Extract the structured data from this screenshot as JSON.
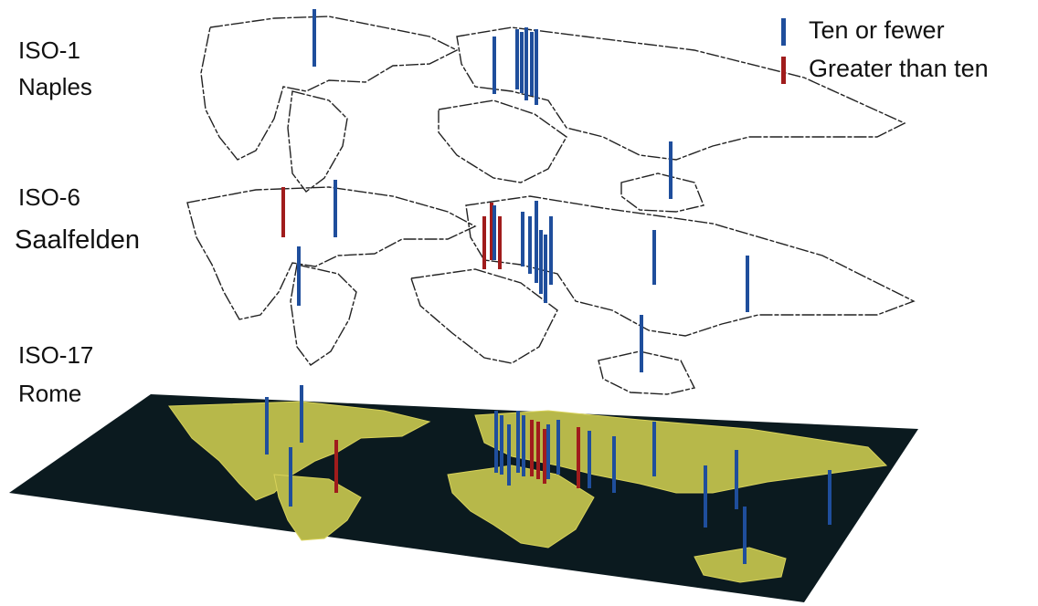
{
  "layers": [
    {
      "code": "ISO-1",
      "city": "Naples"
    },
    {
      "code": "ISO-6",
      "city": "Saalfelden"
    },
    {
      "code": "ISO-17",
      "city": "Rome"
    }
  ],
  "legend": [
    {
      "label": "Ten or fewer",
      "color": "#1f4e9c"
    },
    {
      "label": "Greater than ten",
      "color": "#a01c1c"
    }
  ]
}
